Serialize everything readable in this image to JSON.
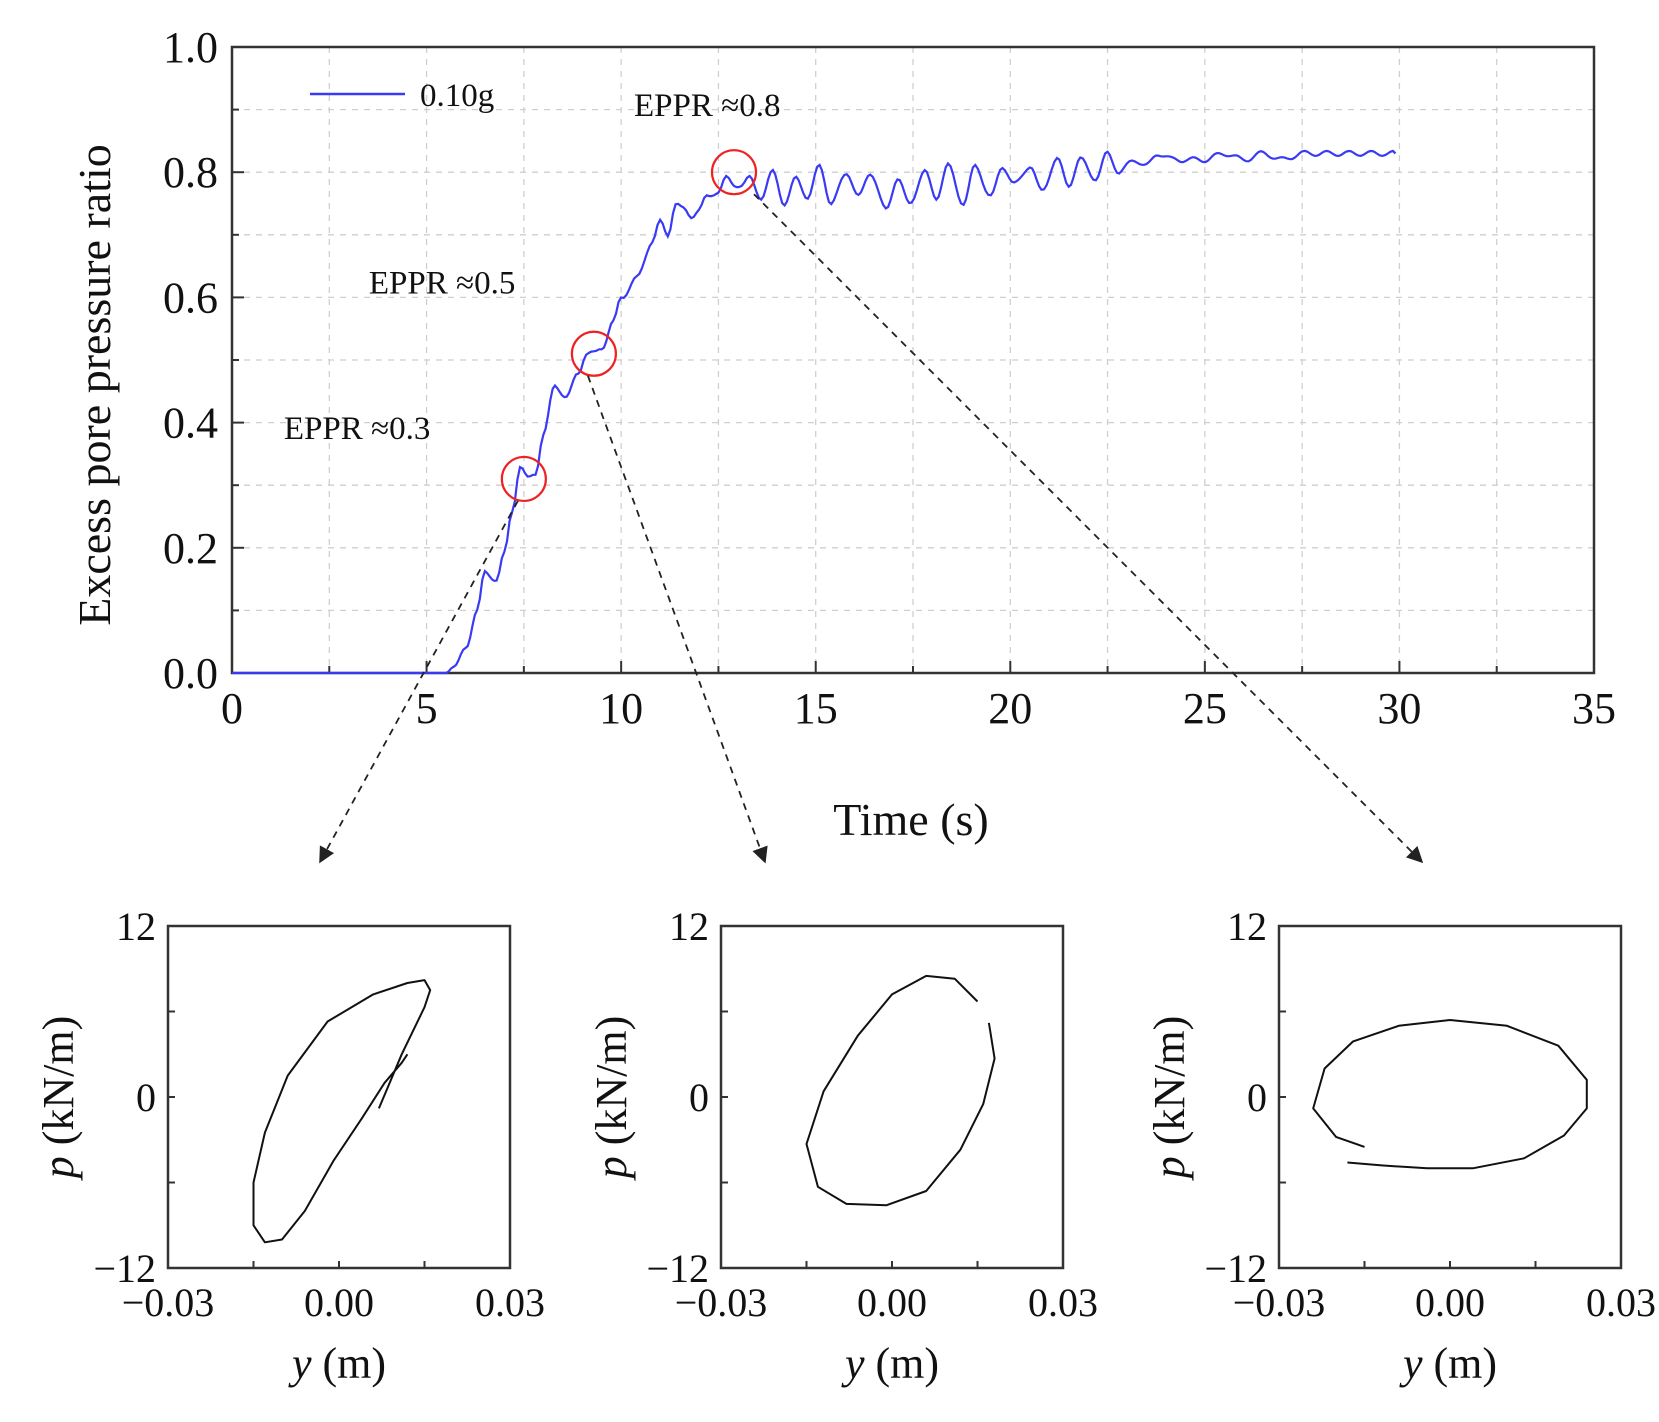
{
  "chart_data": [
    {
      "type": "line",
      "xlabel": "Time (s)",
      "ylabel": "Excess pore pressure ratio",
      "xlim": [
        0,
        35
      ],
      "ylim": [
        0,
        1.0
      ],
      "xticks": [
        0,
        5,
        10,
        15,
        20,
        25,
        30,
        35
      ],
      "xtick_labels": [
        "0",
        "5",
        "10",
        "15",
        "20",
        "25",
        "30",
        "35"
      ],
      "yticks": [
        0,
        0.2,
        0.4,
        0.6,
        0.8,
        1.0
      ],
      "ytick_labels": [
        "0.0",
        "0.2",
        "0.4",
        "0.6",
        "0.8",
        "1.0"
      ],
      "grid": true,
      "legend_position": "top-left",
      "series": [
        {
          "name": "0.10g",
          "color": "#3a3af5",
          "x": [
            0,
            5.0,
            5.5,
            5.7,
            6.0,
            6.3,
            6.5,
            6.8,
            7.0,
            7.2,
            7.4,
            7.6,
            7.8,
            8.0,
            8.3,
            8.6,
            8.9,
            9.1,
            9.3,
            9.5,
            9.8,
            10.0,
            10.4,
            10.8,
            11.0,
            11.2,
            11.4,
            11.6,
            11.8,
            12.0,
            12.2,
            12.5,
            12.7,
            12.9,
            13.1,
            13.3,
            13.6,
            13.9,
            14.2,
            14.5,
            14.8,
            15.1,
            15.4,
            15.8,
            16.1,
            16.4,
            16.8,
            17.1,
            17.4,
            17.8,
            18.1,
            18.4,
            18.8,
            19.1,
            19.5,
            19.8,
            20.1,
            20.5,
            20.8,
            21.2,
            21.5,
            21.8,
            22.2,
            22.5,
            22.8,
            23.2,
            23.5,
            23.8,
            24.2,
            24.5,
            25.0,
            25.5,
            26.0,
            26.5,
            27.0,
            27.5,
            28.0,
            28.5,
            29.0,
            29.5,
            29.9
          ],
          "y": [
            0,
            0,
            0,
            0.01,
            0.04,
            0.1,
            0.16,
            0.15,
            0.19,
            0.26,
            0.33,
            0.31,
            0.32,
            0.38,
            0.46,
            0.44,
            0.48,
            0.51,
            0.51,
            0.52,
            0.56,
            0.6,
            0.63,
            0.69,
            0.72,
            0.7,
            0.75,
            0.74,
            0.73,
            0.74,
            0.76,
            0.77,
            0.79,
            0.78,
            0.78,
            0.79,
            0.76,
            0.8,
            0.75,
            0.79,
            0.76,
            0.81,
            0.75,
            0.8,
            0.76,
            0.8,
            0.74,
            0.79,
            0.75,
            0.8,
            0.76,
            0.81,
            0.75,
            0.81,
            0.76,
            0.81,
            0.78,
            0.81,
            0.77,
            0.82,
            0.78,
            0.82,
            0.79,
            0.83,
            0.8,
            0.82,
            0.81,
            0.83,
            0.82,
            0.82,
            0.82,
            0.83,
            0.82,
            0.83,
            0.82,
            0.83,
            0.83,
            0.83,
            0.83,
            0.83,
            0.83
          ]
        }
      ],
      "annotations": [
        {
          "text": "EPPR ≈0.3",
          "x": 7.5,
          "y": 0.31
        },
        {
          "text": "EPPR ≈0.5",
          "x": 9.3,
          "y": 0.51
        },
        {
          "text": "EPPR ≈0.8",
          "x": 12.9,
          "y": 0.8
        }
      ]
    },
    {
      "type": "line",
      "xlabel_symbol": "y",
      "xlabel_unit": " (m)",
      "ylabel_symbol": "p",
      "ylabel_unit": " (kN/m)",
      "xlim": [
        -0.03,
        0.03
      ],
      "ylim": [
        -12,
        12
      ],
      "xtick_labels": [
        "−0.03",
        "0.00",
        "0.03"
      ],
      "ytick_labels": [
        "12",
        "0",
        "−12"
      ],
      "series": [
        {
          "name": "EPPR ≈0.3",
          "x": [
            0.007,
            0.011,
            0.015,
            0.016,
            0.015,
            0.012,
            0.006,
            -0.002,
            -0.009,
            -0.013,
            -0.015,
            -0.015,
            -0.013,
            -0.01,
            -0.006,
            -0.001,
            0.004,
            0.008,
            0.011,
            0.012
          ],
          "y": [
            -0.8,
            3.0,
            6.3,
            7.5,
            8.2,
            8.0,
            7.2,
            5.3,
            1.5,
            -2.5,
            -6.0,
            -9.0,
            -10.2,
            -10.0,
            -8.0,
            -4.5,
            -1.5,
            1.0,
            2.4,
            3.0
          ]
        },
        {
          "name": "EPPR ≈0.5",
          "x": [
            0.015,
            0.011,
            0.006,
            0.0,
            -0.006,
            -0.012,
            -0.015,
            -0.013,
            -0.008,
            -0.001,
            0.006,
            0.012,
            0.016,
            0.018,
            0.017
          ],
          "y": [
            6.7,
            8.3,
            8.5,
            7.2,
            4.3,
            0.4,
            -3.3,
            -6.3,
            -7.5,
            -7.6,
            -6.6,
            -3.7,
            -0.5,
            2.7,
            5.2
          ]
        },
        {
          "name": "EPPR ≈0.8",
          "x": [
            -0.015,
            -0.02,
            -0.024,
            -0.022,
            -0.017,
            -0.009,
            0.0,
            0.01,
            0.019,
            0.024,
            0.024,
            0.02,
            0.013,
            0.004,
            -0.004,
            -0.012,
            -0.018
          ],
          "y": [
            -3.5,
            -2.8,
            -0.8,
            2.0,
            3.9,
            5.0,
            5.4,
            5.0,
            3.6,
            1.2,
            -0.8,
            -2.7,
            -4.3,
            -5.0,
            -5.0,
            -4.8,
            -4.6
          ]
        }
      ]
    }
  ]
}
